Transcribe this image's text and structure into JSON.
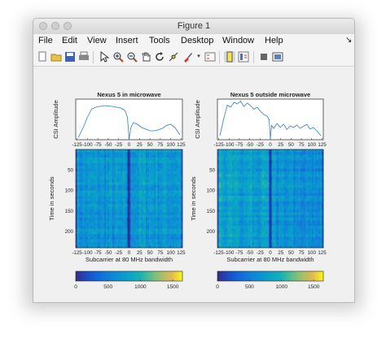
{
  "window": {
    "title": "Figure 1",
    "menu": [
      "File",
      "Edit",
      "View",
      "Insert",
      "Tools",
      "Desktop",
      "Window",
      "Help"
    ],
    "toolbar_icons": [
      "new-figure-icon",
      "open-file-icon",
      "save-icon",
      "print-icon",
      "pointer-icon",
      "zoom-in-icon",
      "zoom-out-icon",
      "pan-icon",
      "rotate-icon",
      "data-cursor-icon",
      "brush-icon",
      "legend-icon",
      "colorbar-icon",
      "edit-plot-icon",
      "insert-colorbar-icon",
      "hide-plot-tools-icon",
      "show-plot-tools-icon"
    ]
  },
  "chart_data": [
    {
      "type": "line",
      "title": "Nexus 5 in microwave",
      "ylabel": "CSI Amplitude",
      "xlim": [
        -128,
        128
      ],
      "xticks": [
        "-125",
        "-100",
        "-75",
        "-50",
        "-25",
        "0",
        "25",
        "50",
        "75",
        "100",
        "125"
      ],
      "grid": false,
      "x": [
        -122,
        -110,
        -100,
        -90,
        -80,
        -70,
        -60,
        -50,
        -40,
        -30,
        -20,
        -10,
        -4,
        0,
        4,
        10,
        20,
        30,
        40,
        50,
        60,
        70,
        80,
        90,
        100,
        110,
        122
      ],
      "values": [
        0.05,
        0.3,
        0.55,
        0.75,
        0.8,
        0.82,
        0.84,
        0.83,
        0.82,
        0.8,
        0.78,
        0.72,
        0.55,
        0.02,
        0.28,
        0.42,
        0.38,
        0.3,
        0.26,
        0.22,
        0.22,
        0.24,
        0.28,
        0.35,
        0.38,
        0.3,
        0.12
      ]
    },
    {
      "type": "line",
      "title": "Nexus 5 outside microwave",
      "ylabel": "CSI Amplitude",
      "xlim": [
        -128,
        128
      ],
      "xticks": [
        "-125",
        "-100",
        "-75",
        "-50",
        "-25",
        "0",
        "25",
        "50",
        "75",
        "100",
        "125"
      ],
      "grid": false,
      "x": [
        -122,
        -112,
        -104,
        -96,
        -88,
        -80,
        -72,
        -64,
        -56,
        -48,
        -40,
        -32,
        -24,
        -16,
        -8,
        -3,
        0,
        3,
        8,
        16,
        24,
        32,
        40,
        48,
        56,
        64,
        72,
        80,
        88,
        96,
        104,
        112,
        122
      ],
      "values": [
        0.1,
        0.55,
        0.85,
        0.8,
        0.92,
        0.88,
        0.95,
        0.82,
        0.9,
        0.84,
        0.75,
        0.8,
        0.7,
        0.62,
        0.58,
        0.5,
        0.02,
        0.35,
        0.28,
        0.4,
        0.3,
        0.38,
        0.25,
        0.34,
        0.3,
        0.36,
        0.28,
        0.33,
        0.38,
        0.26,
        0.3,
        0.22,
        0.1
      ]
    },
    {
      "type": "heatmap",
      "ylabel": "Time in seconds",
      "xlabel": "Subcarrier at 80 MHz bandwidth",
      "xlim": [
        -128,
        128
      ],
      "xticks": [
        "-125",
        "-100",
        "-75",
        "-50",
        "-25",
        "0",
        "25",
        "50",
        "75",
        "100",
        "125"
      ],
      "yticks": [
        "50",
        "100",
        "150",
        "200"
      ],
      "ylim": [
        0,
        240
      ],
      "colorbar_ticks": [
        "0",
        "500",
        "1000",
        "1500"
      ],
      "colorbar_range": [
        0,
        1650
      ]
    },
    {
      "type": "heatmap",
      "ylabel": "Time in seconds",
      "xlabel": "Subcarrier at 80 MHz bandwidth",
      "xlim": [
        -128,
        128
      ],
      "xticks": [
        "-125",
        "-100",
        "-75",
        "-50",
        "-25",
        "0",
        "25",
        "50",
        "75",
        "100",
        "125"
      ],
      "yticks": [
        "50",
        "100",
        "150",
        "200"
      ],
      "ylim": [
        0,
        240
      ],
      "colorbar_ticks": [
        "0",
        "500",
        "1000",
        "1500"
      ],
      "colorbar_range": [
        0,
        1650
      ]
    }
  ]
}
